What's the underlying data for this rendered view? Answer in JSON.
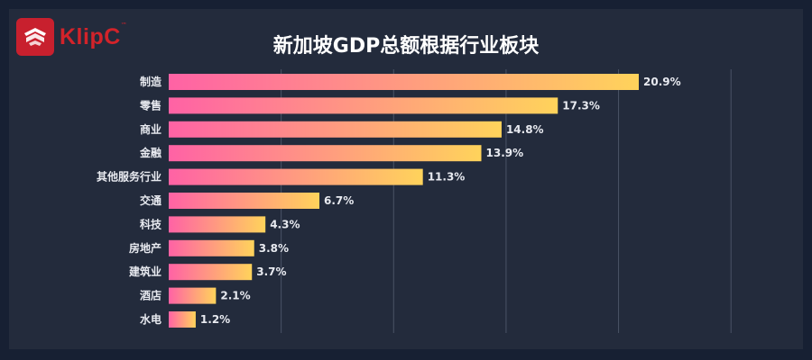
{
  "brand": {
    "logo_text": "KlipC",
    "logo_tm": "™"
  },
  "chart_data": {
    "type": "bar",
    "orientation": "horizontal",
    "title": "新加坡GDP总额根据行业板块",
    "categories": [
      "制造",
      "零售",
      "商业",
      "金融",
      "其他服务行业",
      "交通",
      "科技",
      "房地产",
      "建筑业",
      "酒店",
      "水电"
    ],
    "values": [
      20.9,
      17.3,
      14.8,
      13.9,
      11.3,
      6.7,
      4.3,
      3.8,
      3.7,
      2.1,
      1.2
    ],
    "value_labels": [
      "20.9%",
      "17.3%",
      "14.8%",
      "13.9%",
      "11.3%",
      "6.7%",
      "4.3%",
      "3.8%",
      "3.7%",
      "2.1%",
      "1.2%"
    ],
    "xlim": [
      0,
      35
    ],
    "grid": true,
    "colors": {
      "gradient_start": "#ff62a5",
      "gradient_end": "#ffd35b"
    }
  }
}
